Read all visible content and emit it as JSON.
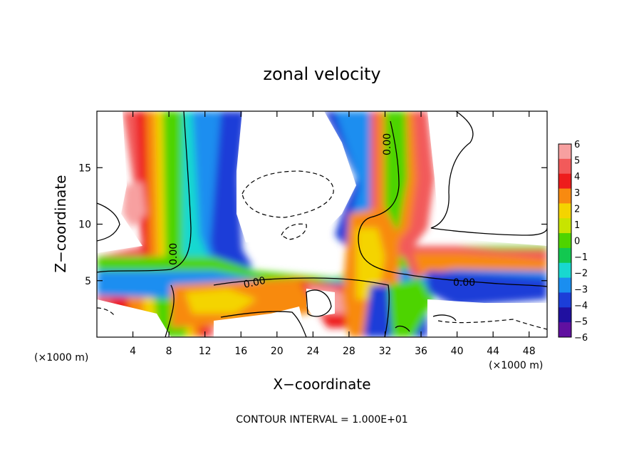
{
  "chart_data": {
    "type": "heatmap",
    "title": "zonal velocity",
    "xlabel": "X−coordinate",
    "ylabel": "Z−coordinate",
    "x_unit_left": "(×1000 m)",
    "x_unit_right": "(×1000 m)",
    "footer": "CONTOUR INTERVAL = 1.000E+01",
    "xlim": [
      0,
      50
    ],
    "ylim": [
      0,
      20
    ],
    "x_ticks": [
      4,
      8,
      12,
      16,
      20,
      24,
      28,
      32,
      36,
      40,
      44,
      48
    ],
    "y_ticks": [
      5,
      10,
      15
    ],
    "x_tick_labels": [
      "4",
      "8",
      "12",
      "16",
      "20",
      "24",
      "28",
      "32",
      "36",
      "40",
      "44",
      "48"
    ],
    "y_tick_labels": [
      "5",
      "10",
      "15"
    ],
    "colorbar": {
      "levels": [
        6,
        5,
        4,
        3,
        2,
        1,
        0,
        -1,
        -2,
        -3,
        -4,
        -5,
        -6
      ],
      "labels": [
        "6",
        "5",
        "4",
        "3",
        "2",
        "1",
        "0",
        "−1",
        "−2",
        "−3",
        "−4",
        "−5",
        "−6"
      ],
      "colors": [
        "#f7a0a0",
        "#f25a5a",
        "#ee1c1c",
        "#f88a10",
        "#f4d400",
        "#c8e400",
        "#4ed400",
        "#12c850",
        "#18d8d0",
        "#1a8ef0",
        "#1c3ed8",
        "#2010a0",
        "#6010a0"
      ]
    },
    "contour_labels": [
      "0.00",
      "0.00",
      "0.00",
      "0.00"
    ],
    "grid": false
  }
}
